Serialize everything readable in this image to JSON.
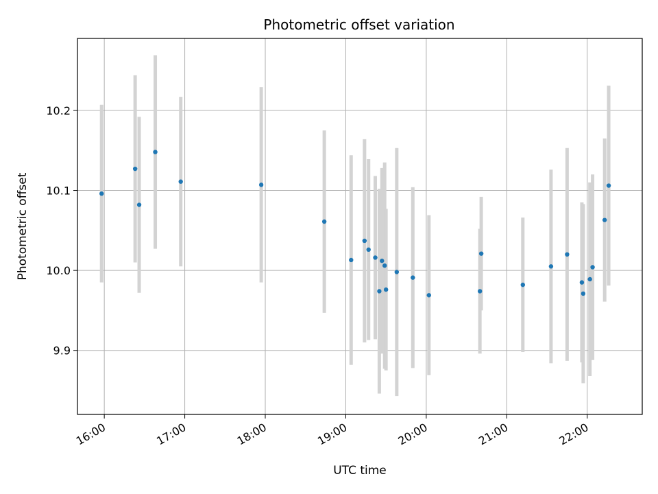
{
  "chart_data": {
    "type": "scatter",
    "title": "Photometric offset variation",
    "xlabel": "UTC time",
    "ylabel": "Photometric offset",
    "grid": true,
    "legend": "none",
    "x_ticks": [
      "16:00",
      "17:00",
      "18:00",
      "19:00",
      "20:00",
      "21:00",
      "22:00"
    ],
    "y_ticks": [
      9.9,
      10.0,
      10.1,
      10.2
    ],
    "y_tick_labels": [
      "9.9",
      "10.0",
      "10.1",
      "10.2"
    ],
    "xlim": [
      "15:40",
      "22:41"
    ],
    "ylim": [
      9.82,
      10.29
    ],
    "point_color": "#1f77b4",
    "errorbar_color": "#d3d3d3",
    "points": [
      {
        "x": "15:58",
        "y": 10.096,
        "err": 0.111
      },
      {
        "x": "16:23",
        "y": 10.127,
        "err": 0.117
      },
      {
        "x": "16:26",
        "y": 10.082,
        "err": 0.11
      },
      {
        "x": "16:38",
        "y": 10.148,
        "err": 0.121
      },
      {
        "x": "16:57",
        "y": 10.111,
        "err": 0.106
      },
      {
        "x": "17:57",
        "y": 10.107,
        "err": 0.122
      },
      {
        "x": "18:44",
        "y": 10.061,
        "err": 0.114
      },
      {
        "x": "19:04",
        "y": 10.013,
        "err": 0.131
      },
      {
        "x": "19:14",
        "y": 10.037,
        "err": 0.127
      },
      {
        "x": "19:17",
        "y": 10.026,
        "err": 0.113
      },
      {
        "x": "19:22",
        "y": 10.016,
        "err": 0.102
      },
      {
        "x": "19:25",
        "y": 9.974,
        "err": 0.128
      },
      {
        "x": "19:27",
        "y": 10.012,
        "err": 0.116
      },
      {
        "x": "19:29",
        "y": 10.006,
        "err": 0.129
      },
      {
        "x": "19:30",
        "y": 9.976,
        "err": 0.101
      },
      {
        "x": "19:38",
        "y": 9.998,
        "err": 0.155
      },
      {
        "x": "19:50",
        "y": 9.991,
        "err": 0.113
      },
      {
        "x": "20:02",
        "y": 9.969,
        "err": 0.1
      },
      {
        "x": "20:40",
        "y": 9.974,
        "err": 0.078
      },
      {
        "x": "20:41",
        "y": 10.021,
        "err": 0.071
      },
      {
        "x": "21:12",
        "y": 9.982,
        "err": 0.084
      },
      {
        "x": "21:33",
        "y": 10.005,
        "err": 0.121
      },
      {
        "x": "21:45",
        "y": 10.02,
        "err": 0.133
      },
      {
        "x": "21:56",
        "y": 9.985,
        "err": 0.1
      },
      {
        "x": "21:57",
        "y": 9.971,
        "err": 0.112
      },
      {
        "x": "22:02",
        "y": 9.989,
        "err": 0.121
      },
      {
        "x": "22:04",
        "y": 10.004,
        "err": 0.116
      },
      {
        "x": "22:13",
        "y": 10.063,
        "err": 0.102
      },
      {
        "x": "22:16",
        "y": 10.106,
        "err": 0.125
      }
    ]
  }
}
